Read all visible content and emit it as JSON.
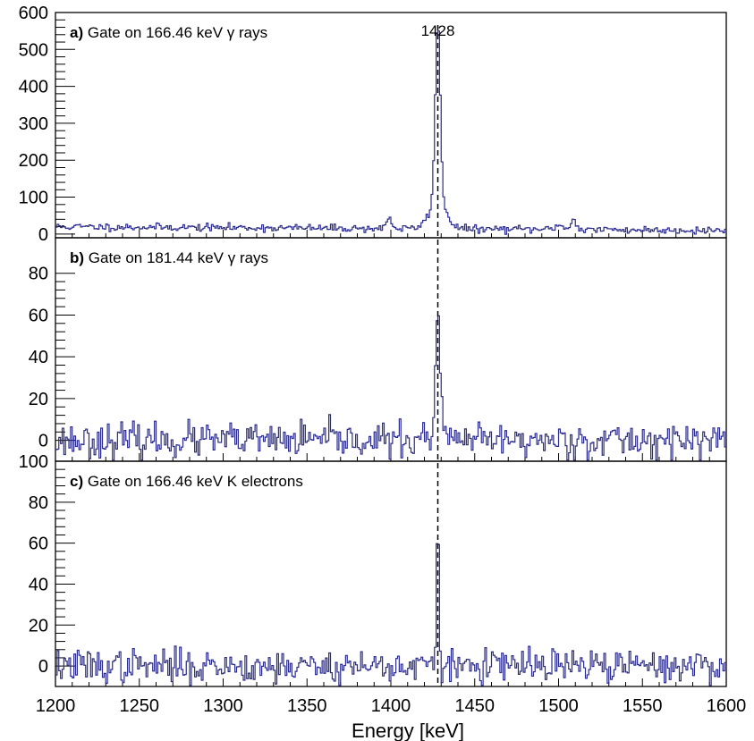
{
  "chart_data": {
    "type": "line",
    "x_label": "Energy [keV]",
    "x_range": [
      1200,
      1600
    ],
    "x_ticks": [
      1200,
      1250,
      1300,
      1350,
      1400,
      1450,
      1500,
      1550,
      1600
    ],
    "bin_width_keV": 1,
    "peak_marker": {
      "energy": 1428,
      "label": "1428",
      "style": "dashed"
    },
    "line_color": "#2b2b8c",
    "panels": [
      {
        "id": "a",
        "letter": "a)",
        "title": "Gate on 166.46 keV γ rays",
        "y_range": [
          -10,
          600
        ],
        "y_ticks": [
          0,
          100,
          200,
          300,
          400,
          500,
          600
        ],
        "baseline_start": 20,
        "baseline_end": 10,
        "noise": 5,
        "seed": 11,
        "peaks": [
          {
            "center": 1428,
            "height": 480,
            "sigma": 1.5
          },
          {
            "center": 1428,
            "height": 75,
            "sigma": 5
          },
          {
            "center": 1399,
            "height": 30,
            "sigma": 1.5
          },
          {
            "center": 1509,
            "height": 30,
            "sigma": 1.5
          },
          {
            "center": 1500,
            "height": 14,
            "sigma": 2
          }
        ]
      },
      {
        "id": "b",
        "letter": "b)",
        "title": "Gate on 181.44 keV γ rays",
        "y_range": [
          -10,
          97
        ],
        "y_ticks": [
          0,
          20,
          40,
          60,
          80
        ],
        "baseline_start": 0,
        "baseline_end": 0,
        "noise": 4,
        "seed": 23,
        "peaks": [
          {
            "center": 1428,
            "height": 56,
            "sigma": 1.1
          },
          {
            "center": 1428,
            "height": 10,
            "sigma": 3
          }
        ]
      },
      {
        "id": "c",
        "letter": "c)",
        "title": "Gate on 166.46 keV K electrons",
        "y_range": [
          -10,
          100
        ],
        "y_ticks": [
          0,
          20,
          40,
          60,
          80,
          100
        ],
        "baseline_start": 0,
        "baseline_end": 0,
        "noise": 4,
        "seed": 37,
        "peaks": [
          {
            "center": 1428,
            "height": 65,
            "sigma": 0.8
          }
        ]
      }
    ]
  }
}
